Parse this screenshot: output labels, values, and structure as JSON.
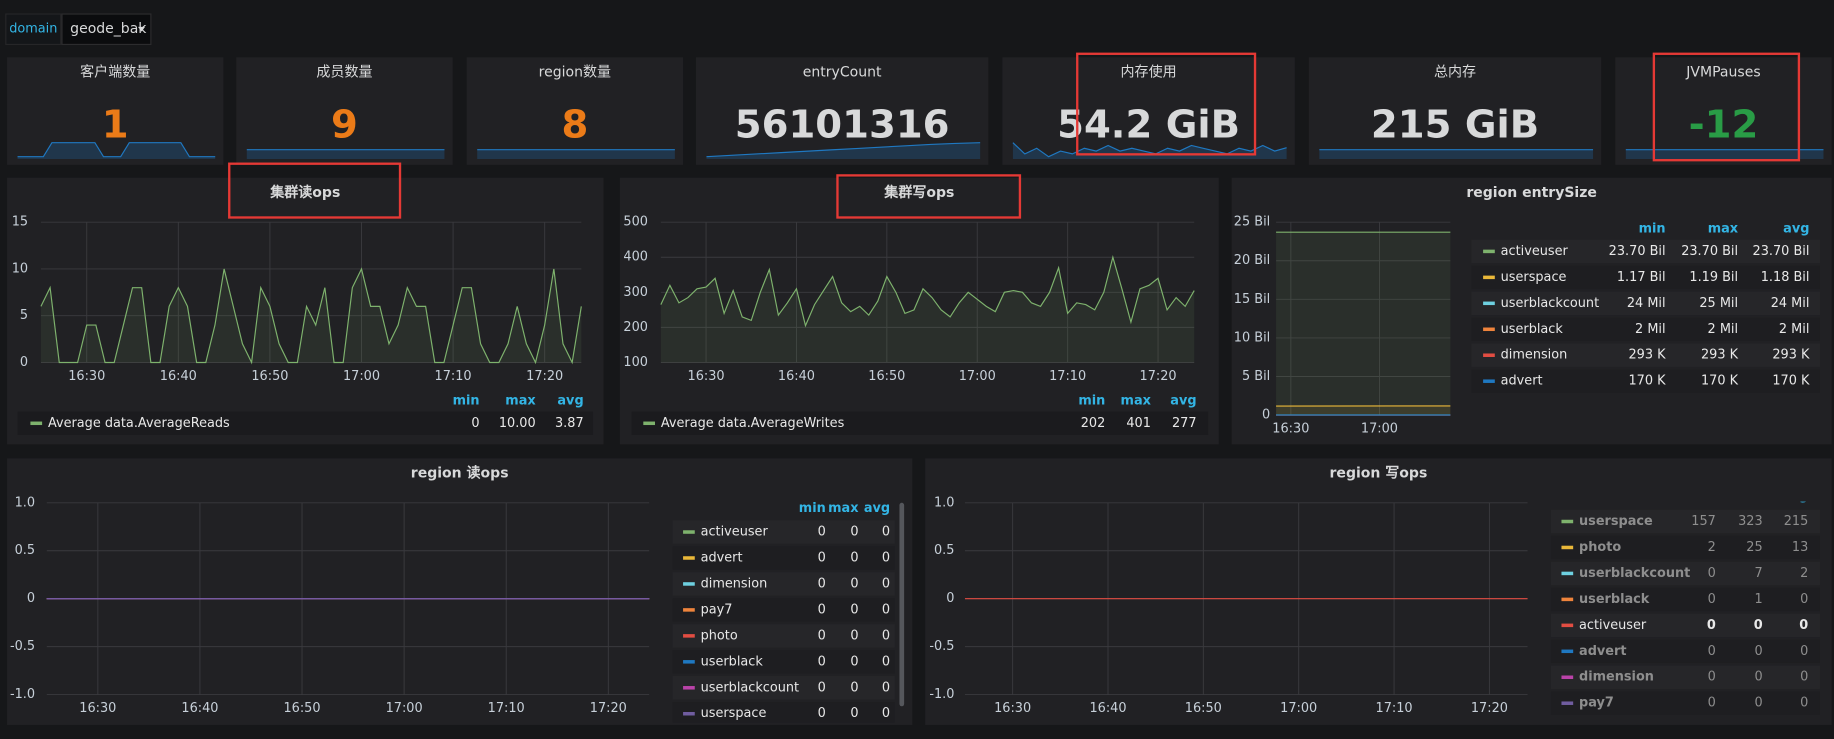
{
  "variable": {
    "label": "domain",
    "value": "geode_bak"
  },
  "sparkline_color": "#1f78c1",
  "stats": [
    {
      "title": "客户端数量",
      "value": 1,
      "color": "#eb7b18",
      "sparkline": [
        0,
        0,
        0,
        0,
        1,
        1,
        1,
        1,
        1,
        1,
        0,
        0,
        0,
        1,
        1,
        1,
        1,
        1,
        1,
        1,
        0,
        0,
        0,
        0
      ]
    },
    {
      "title": "成员数量",
      "value": 9,
      "color": "#eb7b18",
      "sparkline": [
        9,
        9
      ]
    },
    {
      "title": "region数量",
      "value": 8,
      "color": "#eb7b18",
      "sparkline": [
        8,
        8
      ]
    },
    {
      "title": "entryCount",
      "value": 56101316,
      "color": "#d8d9da",
      "sparkline": [
        56060000,
        56064000,
        56068000,
        56072000,
        56076000,
        56080000,
        56084000,
        56088000,
        56092000,
        56096000,
        56099000,
        56101316
      ]
    },
    {
      "title": "内存使用",
      "value": "54.2 GiB",
      "color": "#d8d9da",
      "sparkline": [
        56,
        52,
        54,
        51,
        53,
        52,
        54,
        53,
        55,
        53,
        54,
        53,
        52,
        54,
        53,
        55,
        54,
        53,
        52,
        54,
        53,
        55,
        53,
        54.2
      ]
    },
    {
      "title": "总内存",
      "value": "215 GiB",
      "color": "#d8d9da",
      "sparkline": [
        215,
        215
      ]
    },
    {
      "title": "JVMPauses",
      "value": -12,
      "color": "#299c46",
      "sparkline": [
        -12,
        -12
      ]
    }
  ],
  "chart_data": [
    {
      "type": "line",
      "title": "集群读ops",
      "grid": true,
      "x": [
        "16:25",
        "16:26",
        "16:27",
        "16:28",
        "16:29",
        "16:30",
        "16:31",
        "16:32",
        "16:33",
        "16:34",
        "16:35",
        "16:36",
        "16:37",
        "16:38",
        "16:39",
        "16:40",
        "16:41",
        "16:42",
        "16:43",
        "16:44",
        "16:45",
        "16:46",
        "16:47",
        "16:48",
        "16:49",
        "16:50",
        "16:51",
        "16:52",
        "16:53",
        "16:54",
        "16:55",
        "16:56",
        "16:57",
        "16:58",
        "16:59",
        "17:00",
        "17:01",
        "17:02",
        "17:03",
        "17:04",
        "17:05",
        "17:06",
        "17:07",
        "17:08",
        "17:09",
        "17:10",
        "17:11",
        "17:12",
        "17:13",
        "17:14",
        "17:15",
        "17:16",
        "17:17",
        "17:18",
        "17:19",
        "17:20",
        "17:21",
        "17:22",
        "17:23",
        "17:24"
      ],
      "xlim": [
        "16:25",
        "17:24"
      ],
      "xticks": [
        "16:30",
        "16:40",
        "16:50",
        "17:00",
        "17:10",
        "17:20"
      ],
      "ylim": [
        0,
        15
      ],
      "yticks": [
        0,
        5,
        10,
        15
      ],
      "legend_headers": [
        "min",
        "max",
        "avg"
      ],
      "series": [
        {
          "name": "Average data.AverageReads",
          "color": "#7eb26d",
          "legend_values": [
            "0",
            "10.00",
            "3.87"
          ],
          "values": [
            6,
            8,
            0,
            0,
            0,
            4,
            4,
            0,
            0,
            4,
            8,
            8,
            0,
            0,
            6,
            8,
            6,
            0,
            0,
            4,
            10,
            6,
            2,
            0,
            8,
            6,
            2,
            0,
            0,
            6,
            4,
            8,
            0,
            0,
            8,
            10,
            6,
            6,
            2,
            4,
            8,
            6,
            6,
            0,
            0,
            4,
            8,
            8,
            2,
            0,
            0,
            2,
            6,
            2,
            0,
            4,
            10,
            2,
            0,
            6
          ]
        }
      ]
    },
    {
      "type": "line",
      "title": "集群写ops",
      "grid": true,
      "x": [
        "16:25",
        "16:26",
        "16:27",
        "16:28",
        "16:29",
        "16:30",
        "16:31",
        "16:32",
        "16:33",
        "16:34",
        "16:35",
        "16:36",
        "16:37",
        "16:38",
        "16:39",
        "16:40",
        "16:41",
        "16:42",
        "16:43",
        "16:44",
        "16:45",
        "16:46",
        "16:47",
        "16:48",
        "16:49",
        "16:50",
        "16:51",
        "16:52",
        "16:53",
        "16:54",
        "16:55",
        "16:56",
        "16:57",
        "16:58",
        "16:59",
        "17:00",
        "17:01",
        "17:02",
        "17:03",
        "17:04",
        "17:05",
        "17:06",
        "17:07",
        "17:08",
        "17:09",
        "17:10",
        "17:11",
        "17:12",
        "17:13",
        "17:14",
        "17:15",
        "17:16",
        "17:17",
        "17:18",
        "17:19",
        "17:20",
        "17:21",
        "17:22",
        "17:23",
        "17:24"
      ],
      "xlim": [
        "16:25",
        "17:24"
      ],
      "xticks": [
        "16:30",
        "16:40",
        "16:50",
        "17:00",
        "17:10",
        "17:20"
      ],
      "ylim": [
        100,
        500
      ],
      "yticks": [
        100,
        200,
        300,
        400,
        500
      ],
      "legend_headers": [
        "min",
        "max",
        "avg"
      ],
      "series": [
        {
          "name": "Average data.AverageWrites",
          "color": "#7eb26d",
          "legend_values": [
            "202",
            "401",
            "277"
          ],
          "values": [
            265,
            320,
            270,
            285,
            310,
            315,
            340,
            240,
            305,
            230,
            220,
            300,
            365,
            235,
            270,
            310,
            205,
            265,
            305,
            345,
            270,
            245,
            260,
            235,
            275,
            345,
            300,
            240,
            250,
            310,
            285,
            250,
            230,
            270,
            300,
            280,
            260,
            245,
            300,
            305,
            300,
            270,
            260,
            300,
            370,
            240,
            270,
            265,
            250,
            300,
            400,
            310,
            215,
            310,
            320,
            340,
            250,
            285,
            260,
            305
          ]
        }
      ]
    },
    {
      "type": "line",
      "title": "region entrySize",
      "grid": true,
      "x": [
        "16:25",
        "17:24"
      ],
      "xlim": [
        "16:25",
        "17:24"
      ],
      "xticks": [
        "16:30",
        "17:00"
      ],
      "ylim": [
        0,
        25000000000
      ],
      "yticks": [
        0,
        {
          "value": 5000000000,
          "label": "5 Bil"
        },
        {
          "value": 10000000000,
          "label": "10 Bil"
        },
        {
          "value": 15000000000,
          "label": "15 Bil"
        },
        {
          "value": 20000000000,
          "label": "20 Bil"
        },
        {
          "value": 25000000000,
          "label": "25 Bil"
        }
      ],
      "legend_headers": [
        "min",
        "max",
        "avg"
      ],
      "series": [
        {
          "name": "activeuser",
          "color": "#7eb26d",
          "legend_values": [
            "23.70 Bil",
            "23.70 Bil",
            "23.70 Bil"
          ],
          "values": [
            23700000000,
            23700000000
          ]
        },
        {
          "name": "userspace",
          "color": "#eab839",
          "legend_values": [
            "1.17 Bil",
            "1.19 Bil",
            "1.18 Bil"
          ],
          "values": [
            1170000000,
            1190000000
          ]
        },
        {
          "name": "userblackcount",
          "color": "#6ed0e0",
          "legend_values": [
            "24 Mil",
            "25 Mil",
            "24 Mil"
          ],
          "values": [
            24000000,
            25000000
          ]
        },
        {
          "name": "userblack",
          "color": "#ef843c",
          "legend_values": [
            "2 Mil",
            "2 Mil",
            "2 Mil"
          ],
          "values": [
            2000000,
            2000000
          ]
        },
        {
          "name": "dimension",
          "color": "#e24d42",
          "legend_values": [
            "293 K",
            "293 K",
            "293 K"
          ],
          "values": [
            293000,
            293000
          ]
        },
        {
          "name": "advert",
          "color": "#1f78c1",
          "legend_values": [
            "170 K",
            "170 K",
            "170 K"
          ],
          "values": [
            170000,
            170000
          ]
        }
      ]
    },
    {
      "type": "line",
      "title": "region 读ops",
      "grid": true,
      "x": [
        "16:25",
        "17:24"
      ],
      "xlim": [
        "16:25",
        "17:24"
      ],
      "xticks": [
        "16:30",
        "16:40",
        "16:50",
        "17:00",
        "17:10",
        "17:20"
      ],
      "ylim": [
        -1,
        1
      ],
      "yticks": [
        {
          "value": -1,
          "label": "-1.0"
        },
        -0.5,
        0,
        0.5,
        {
          "value": 1,
          "label": "1.0"
        }
      ],
      "legend_headers": [
        "min",
        "max",
        "avg"
      ],
      "series": [
        {
          "name": "activeuser",
          "color": "#7eb26d",
          "legend_values": [
            "0",
            "0",
            "0"
          ],
          "values": [
            0,
            0
          ]
        },
        {
          "name": "advert",
          "color": "#eab839",
          "legend_values": [
            "0",
            "0",
            "0"
          ],
          "values": [
            0,
            0
          ]
        },
        {
          "name": "dimension",
          "color": "#6ed0e0",
          "legend_values": [
            "0",
            "0",
            "0"
          ],
          "values": [
            0,
            0
          ]
        },
        {
          "name": "pay7",
          "color": "#ef843c",
          "legend_values": [
            "0",
            "0",
            "0"
          ],
          "values": [
            0,
            0
          ]
        },
        {
          "name": "photo",
          "color": "#e24d42",
          "legend_values": [
            "0",
            "0",
            "0"
          ],
          "values": [
            0,
            0
          ]
        },
        {
          "name": "userblack",
          "color": "#1f78c1",
          "legend_values": [
            "0",
            "0",
            "0"
          ],
          "values": [
            0,
            0
          ]
        },
        {
          "name": "userblackcount",
          "color": "#ba43a9",
          "legend_values": [
            "0",
            "0",
            "0"
          ],
          "values": [
            0,
            0
          ]
        },
        {
          "name": "userspace",
          "color": "#705da0",
          "legend_values": [
            "0",
            "0",
            "0"
          ],
          "values": [
            0,
            0
          ]
        }
      ]
    },
    {
      "type": "line",
      "title": "region 写ops",
      "grid": true,
      "x": [
        "16:25",
        "17:24"
      ],
      "xlim": [
        "16:25",
        "17:24"
      ],
      "xticks": [
        "16:30",
        "16:40",
        "16:50",
        "17:00",
        "17:10",
        "17:20"
      ],
      "ylim": [
        -1,
        1
      ],
      "yticks": [
        {
          "value": -1,
          "label": "-1.0"
        },
        -0.5,
        0,
        0.5,
        {
          "value": 1,
          "label": "1.0"
        }
      ],
      "legend_headers": [
        "min",
        "max",
        "avg"
      ],
      "series": [
        {
          "name": "userspace",
          "color": "#7eb26d",
          "legend_values": [
            "157",
            "323",
            "215"
          ],
          "hidden": true
        },
        {
          "name": "photo",
          "color": "#eab839",
          "legend_values": [
            "2",
            "25",
            "13"
          ],
          "hidden": true
        },
        {
          "name": "userblackcount",
          "color": "#6ed0e0",
          "legend_values": [
            "0",
            "7",
            "2"
          ],
          "hidden": true
        },
        {
          "name": "userblack",
          "color": "#ef843c",
          "legend_values": [
            "0",
            "1",
            "0"
          ],
          "hidden": true
        },
        {
          "name": "activeuser",
          "color": "#e24d42",
          "legend_values": [
            "0",
            "0",
            "0"
          ],
          "values": [
            0,
            0
          ]
        },
        {
          "name": "advert",
          "color": "#1f78c1",
          "legend_values": [
            "0",
            "0",
            "0"
          ],
          "hidden": true
        },
        {
          "name": "dimension",
          "color": "#ba43a9",
          "legend_values": [
            "0",
            "0",
            "0"
          ],
          "hidden": true
        },
        {
          "name": "pay7",
          "color": "#705da0",
          "legend_values": [
            "0",
            "0",
            "0"
          ],
          "hidden": true
        }
      ]
    }
  ]
}
